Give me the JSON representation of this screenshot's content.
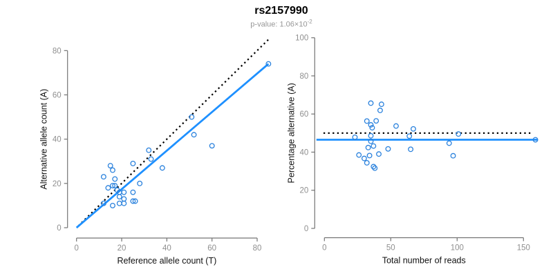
{
  "header": {
    "title": "rs2157990",
    "subtitle_prefix": "p-value: 1.06×10",
    "subtitle_exponent": "-2"
  },
  "colors": {
    "line_blue": "#1E90FF",
    "point_blue": "#2B82DD",
    "dotted_black": "#000000",
    "axis_gray": "#737373",
    "tick_label_gray": "#8f8f8f",
    "axis_title_color": "#111111"
  },
  "chart_data": [
    {
      "type": "scatter",
      "name": "allele-count-scatter",
      "xlabel": "Reference allele count (T)",
      "ylabel": "Alternative allele count (A)",
      "xticks": [
        0,
        20,
        40,
        60,
        80
      ],
      "yticks": [
        0,
        20,
        40,
        60,
        80
      ],
      "xlim": [
        0,
        86
      ],
      "ylim": [
        0,
        86
      ],
      "grid": false,
      "legend": false,
      "points": [
        [
          85,
          74
        ],
        [
          51,
          50
        ],
        [
          52,
          42
        ],
        [
          60,
          37
        ],
        [
          32,
          35
        ],
        [
          33,
          31
        ],
        [
          38,
          27
        ],
        [
          25,
          29
        ],
        [
          15,
          28
        ],
        [
          16,
          26
        ],
        [
          12,
          23
        ],
        [
          17,
          22
        ],
        [
          28,
          20
        ],
        [
          16,
          19
        ],
        [
          17,
          19
        ],
        [
          14,
          18
        ],
        [
          18,
          17
        ],
        [
          19,
          16
        ],
        [
          21,
          16
        ],
        [
          25,
          16
        ],
        [
          19,
          14
        ],
        [
          21,
          13
        ],
        [
          25,
          12
        ],
        [
          26,
          12
        ],
        [
          19,
          11
        ],
        [
          21,
          11
        ],
        [
          16,
          10
        ],
        [
          12,
          11
        ]
      ],
      "lines": [
        {
          "name": "identity-line",
          "style": "dotted",
          "color_key": "dotted_black",
          "width": 2.2,
          "from": [
            0.8,
            0.8
          ],
          "to": [
            85.6,
            85.6
          ]
        },
        {
          "name": "fit-line",
          "style": "solid",
          "color_key": "line_blue",
          "width": 2.8,
          "from": [
            0,
            0
          ],
          "to": [
            85,
            74
          ]
        }
      ]
    },
    {
      "type": "scatter",
      "name": "percentage-alternative-scatter",
      "xlabel": "Total number of reads",
      "ylabel": "Percentage alternative (A)",
      "xticks": [
        0,
        50,
        100,
        150
      ],
      "yticks": [
        0,
        20,
        40,
        60,
        80,
        100
      ],
      "xlim": [
        0,
        160
      ],
      "ylim": [
        0,
        100
      ],
      "grid": false,
      "legend": false,
      "points": [
        [
          159,
          46.5
        ],
        [
          101,
          49.5
        ],
        [
          94,
          44.7
        ],
        [
          97,
          38.1
        ],
        [
          67,
          52.2
        ],
        [
          64,
          48.4
        ],
        [
          65,
          41.5
        ],
        [
          54,
          53.7
        ],
        [
          43,
          65.1
        ],
        [
          42,
          61.9
        ],
        [
          35,
          65.7
        ],
        [
          39,
          56.4
        ],
        [
          48,
          41.7
        ],
        [
          35,
          54.3
        ],
        [
          36,
          52.8
        ],
        [
          32,
          56.3
        ],
        [
          35,
          48.6
        ],
        [
          35,
          45.7
        ],
        [
          37,
          43.2
        ],
        [
          41,
          39.0
        ],
        [
          33,
          42.4
        ],
        [
          34,
          38.2
        ],
        [
          37,
          32.4
        ],
        [
          38,
          31.6
        ],
        [
          30,
          36.7
        ],
        [
          32,
          34.4
        ],
        [
          26,
          38.5
        ],
        [
          23,
          47.8
        ]
      ],
      "lines": [
        {
          "name": "expected-line",
          "style": "dotted",
          "color_key": "dotted_black",
          "width": 2.2,
          "from": [
            -0.7,
            50
          ],
          "to": [
            155.7,
            50
          ]
        },
        {
          "name": "fit-line",
          "style": "solid",
          "color_key": "line_blue",
          "width": 2.8,
          "from": [
            -6,
            46.5
          ],
          "to": [
            160.5,
            46.5
          ]
        }
      ]
    }
  ]
}
